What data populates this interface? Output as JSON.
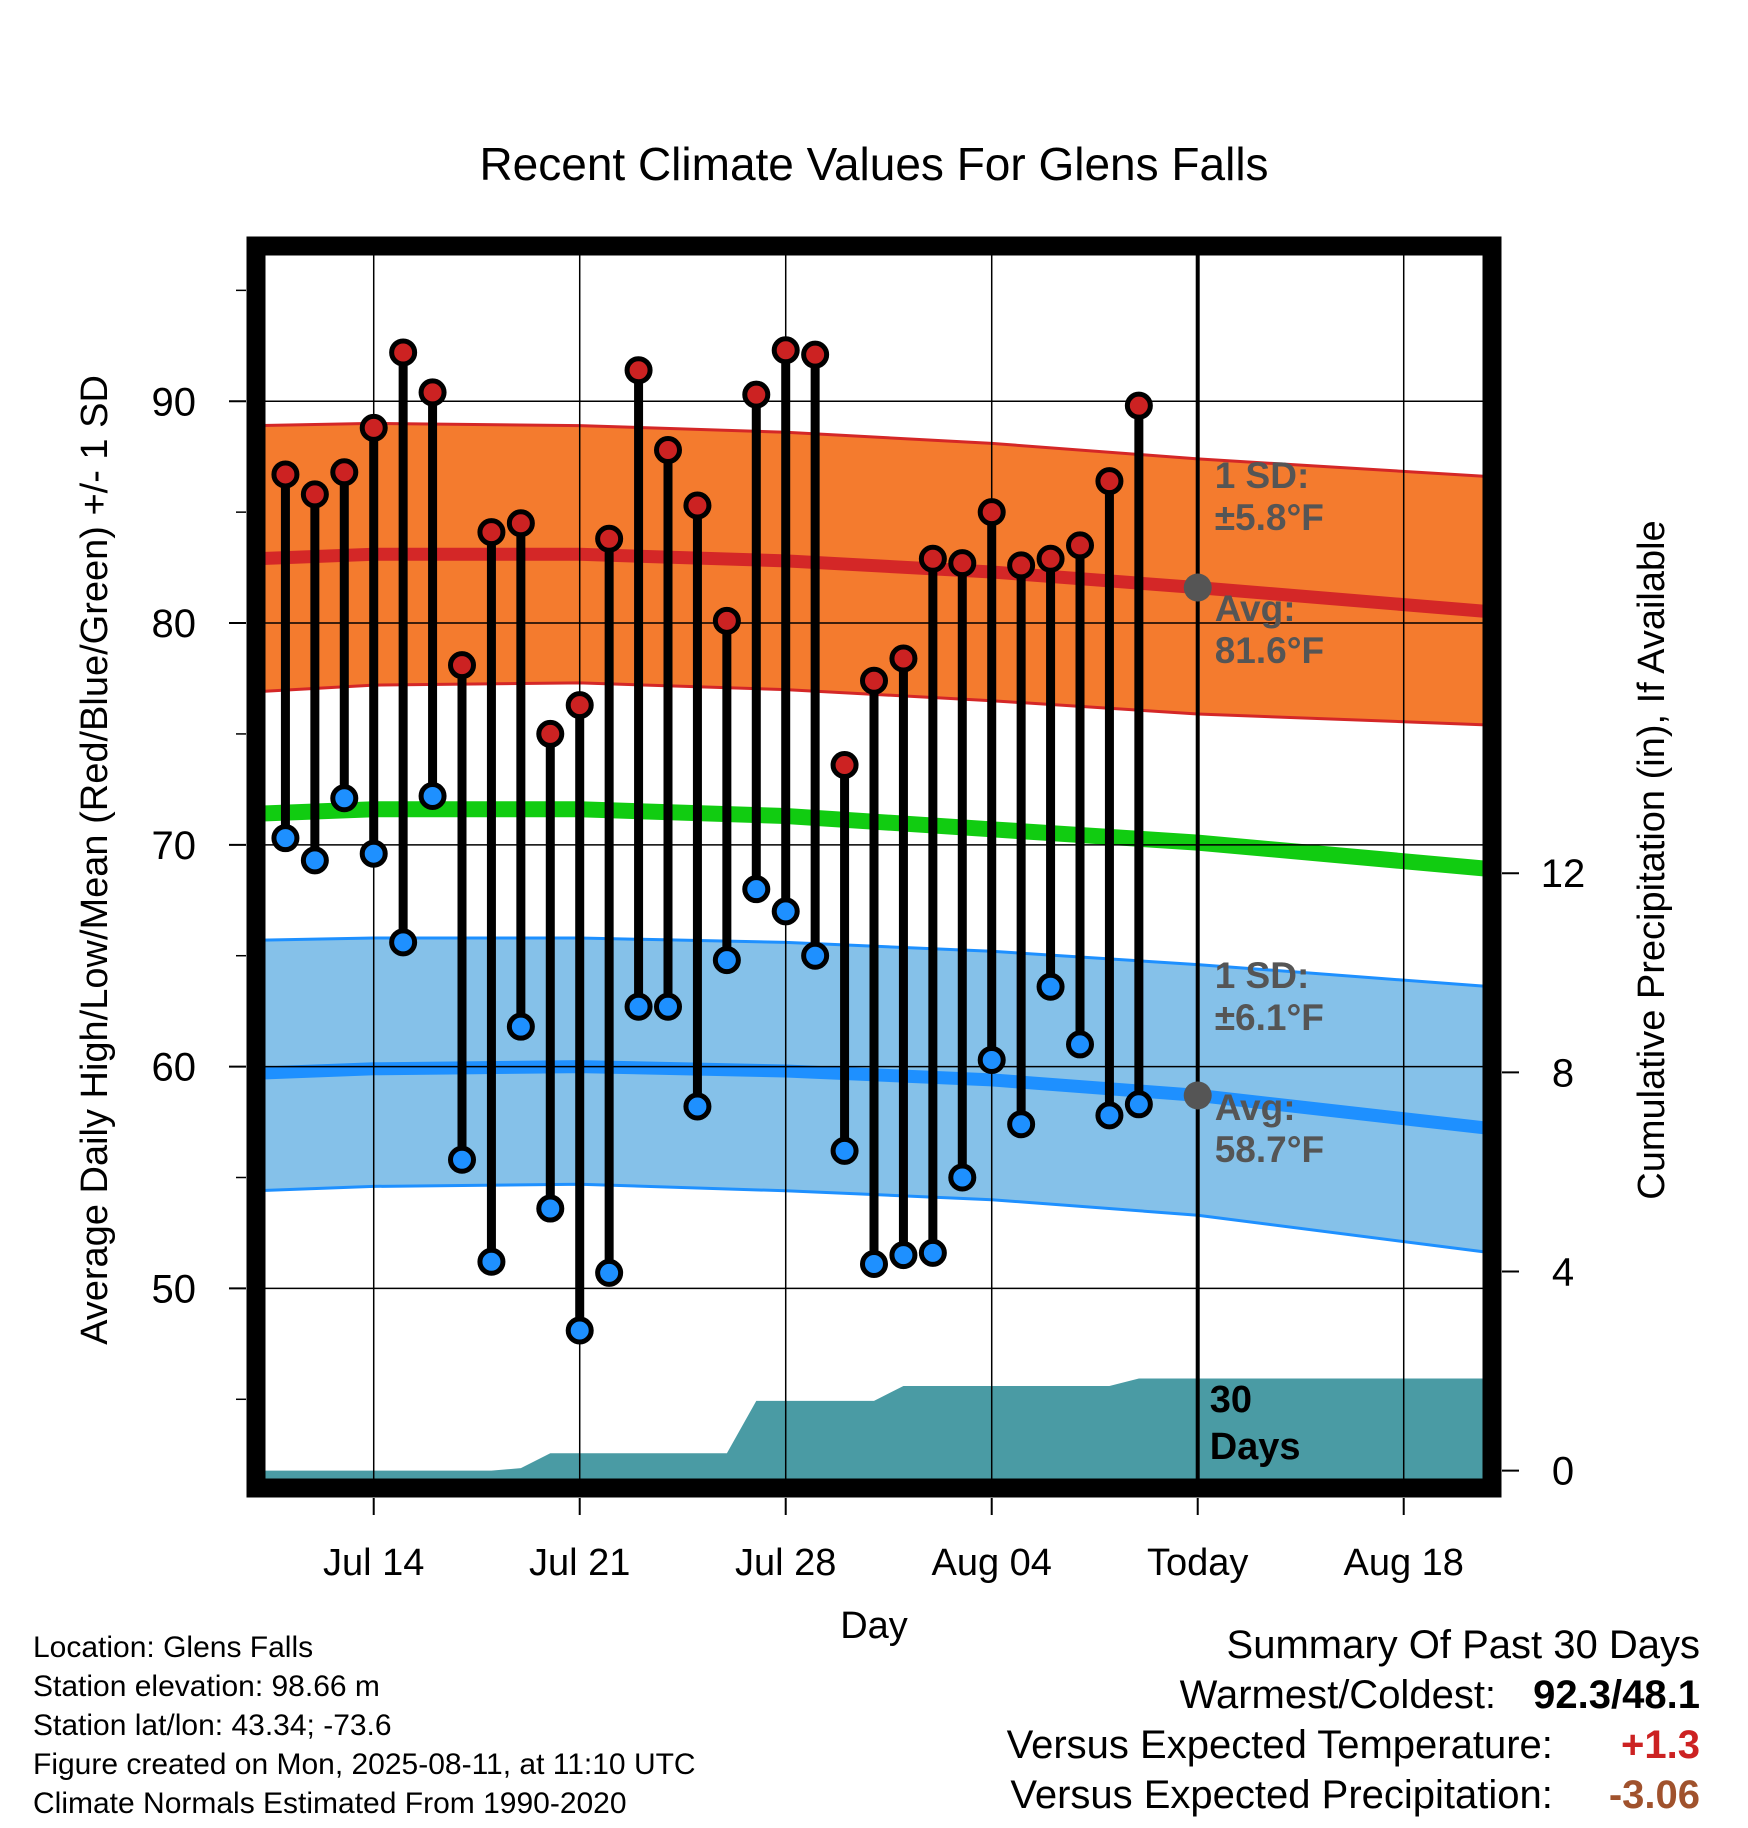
{
  "chart_data": {
    "type": "line",
    "title": "Recent Climate Values For Glens Falls",
    "xlabel": "Day",
    "ylabel": "Average Daily High/Low/Mean (Red/Blue/Green) +/- 1 SD",
    "y2label": "Cumulative Precipitation (in), If Available",
    "x_ticks": [
      "Jul 14",
      "Jul 21",
      "Jul 28",
      "Aug 04",
      "Today",
      "Aug 18"
    ],
    "y_ticks": [
      50,
      60,
      70,
      80,
      90
    ],
    "y2_ticks": [
      0,
      4,
      8,
      12
    ],
    "ylim": [
      41,
      97
    ],
    "y2lim": [
      -0.35,
      24.6
    ],
    "xlim": [
      "2025-07-10",
      "2025-08-21"
    ],
    "grid": true,
    "today": "2025-08-11",
    "today_label": "30\nDays",
    "dates": [
      "2025-07-11",
      "2025-07-12",
      "2025-07-13",
      "2025-07-14",
      "2025-07-15",
      "2025-07-16",
      "2025-07-17",
      "2025-07-18",
      "2025-07-19",
      "2025-07-20",
      "2025-07-21",
      "2025-07-22",
      "2025-07-23",
      "2025-07-24",
      "2025-07-25",
      "2025-07-26",
      "2025-07-27",
      "2025-07-28",
      "2025-07-29",
      "2025-07-30",
      "2025-07-31",
      "2025-08-01",
      "2025-08-02",
      "2025-08-03",
      "2025-08-04",
      "2025-08-05",
      "2025-08-06",
      "2025-08-07",
      "2025-08-08",
      "2025-08-09",
      "2025-08-10"
    ],
    "highs": [
      86.7,
      85.8,
      86.8,
      88.8,
      92.2,
      90.4,
      78.1,
      84.1,
      84.5,
      75.0,
      76.3,
      83.8,
      91.4,
      87.8,
      85.3,
      80.1,
      90.3,
      92.3,
      92.1,
      73.6,
      77.4,
      78.4,
      82.9,
      82.7,
      85.0,
      82.6,
      82.9,
      83.5,
      86.4,
      89.8,
      null
    ],
    "lows": [
      70.3,
      69.3,
      72.1,
      69.6,
      65.6,
      72.2,
      55.8,
      51.2,
      61.8,
      53.6,
      48.1,
      50.7,
      62.7,
      62.7,
      58.2,
      64.8,
      68.0,
      67.0,
      65.0,
      56.2,
      51.1,
      51.5,
      51.6,
      55.0,
      60.3,
      57.4,
      63.6,
      61.0,
      57.8,
      58.3,
      null
    ],
    "series": [
      {
        "name": "Normal High",
        "x": [
          "2025-07-10",
          "2025-07-14",
          "2025-07-21",
          "2025-07-28",
          "2025-08-04",
          "2025-08-11",
          "2025-08-21"
        ],
        "values": [
          82.9,
          83.1,
          83.1,
          82.8,
          82.3,
          81.6,
          80.5
        ],
        "color": "#d42727"
      },
      {
        "name": "Normal High +1 SD",
        "x": [
          "2025-07-10",
          "2025-07-14",
          "2025-07-21",
          "2025-07-28",
          "2025-08-04",
          "2025-08-11",
          "2025-08-21"
        ],
        "values": [
          88.9,
          89.0,
          88.9,
          88.6,
          88.1,
          87.4,
          86.6
        ],
        "color": "#d42727"
      },
      {
        "name": "Normal High -1 SD",
        "x": [
          "2025-07-10",
          "2025-07-14",
          "2025-07-21",
          "2025-07-28",
          "2025-08-04",
          "2025-08-11",
          "2025-08-21"
        ],
        "values": [
          76.9,
          77.2,
          77.3,
          77.0,
          76.5,
          75.9,
          75.4
        ],
        "color": "#d42727"
      },
      {
        "name": "Normal Mean",
        "x": [
          "2025-07-10",
          "2025-07-14",
          "2025-07-21",
          "2025-07-28",
          "2025-08-04",
          "2025-08-11",
          "2025-08-21"
        ],
        "values": [
          71.4,
          71.6,
          71.6,
          71.3,
          70.7,
          70.1,
          68.9
        ],
        "color": "#11cc11"
      },
      {
        "name": "Normal Low",
        "x": [
          "2025-07-10",
          "2025-07-14",
          "2025-07-21",
          "2025-07-28",
          "2025-08-04",
          "2025-08-11",
          "2025-08-21"
        ],
        "values": [
          59.7,
          59.9,
          60.0,
          59.8,
          59.4,
          58.7,
          57.2
        ],
        "color": "#1e90ff"
      },
      {
        "name": "Normal Low +1 SD",
        "x": [
          "2025-07-10",
          "2025-07-14",
          "2025-07-21",
          "2025-07-28",
          "2025-08-04",
          "2025-08-11",
          "2025-08-21"
        ],
        "values": [
          65.7,
          65.8,
          65.8,
          65.6,
          65.2,
          64.6,
          63.6
        ],
        "color": "#1e90ff"
      },
      {
        "name": "Normal Low -1 SD",
        "x": [
          "2025-07-10",
          "2025-07-14",
          "2025-07-21",
          "2025-07-28",
          "2025-08-04",
          "2025-08-11",
          "2025-08-21"
        ],
        "values": [
          54.4,
          54.6,
          54.7,
          54.4,
          54.0,
          53.3,
          51.6
        ],
        "color": "#1e90ff"
      }
    ],
    "precip": {
      "x": [
        "2025-07-10",
        "2025-07-18",
        "2025-07-19",
        "2025-07-20",
        "2025-07-26",
        "2025-07-27",
        "2025-07-31",
        "2025-08-01",
        "2025-08-08",
        "2025-08-09",
        "2025-08-21"
      ],
      "values": [
        0,
        0,
        0.05,
        0.35,
        0.35,
        1.4,
        1.4,
        1.7,
        1.7,
        1.85,
        1.85
      ],
      "color": "#4a9ba4"
    },
    "annotations": {
      "high_sd_1": "1 SD:",
      "high_sd_2": "±5.8°F",
      "high_avg_1": "Avg:",
      "high_avg_2": "81.6°F",
      "low_sd_1": "1 SD:",
      "low_sd_2": "±6.1°F",
      "low_avg_1": "Avg:",
      "low_avg_2": "58.7°F"
    },
    "colors": {
      "high_band": "#f47b2e",
      "high_line": "#d42727",
      "low_band": "#85c1e9",
      "low_line": "#1e90ff",
      "mean_line": "#11cc11",
      "high_marker": "#cc2222",
      "low_marker": "#1e90ff",
      "annotation_text": "#555555"
    }
  },
  "footer": {
    "location": "Location: Glens Falls",
    "elevation": "Station elevation: 98.66 m",
    "latlon": "Station lat/lon: 43.34; -73.6",
    "created": "Figure created on Mon, 2025-08-11, at 11:10 UTC",
    "normals": "Climate Normals Estimated From 1990-2020"
  },
  "summary": {
    "heading": "Summary Of Past 30 Days",
    "warm_label": "Warmest/Coldest:",
    "warm_value": "92.3/48.1",
    "temp_label": "Versus Expected Temperature:",
    "temp_value": "+1.3",
    "temp_color": "#cc2222",
    "precip_label": "Versus Expected Precipitation:",
    "precip_value": "-3.06",
    "precip_color": "#a0522d"
  }
}
